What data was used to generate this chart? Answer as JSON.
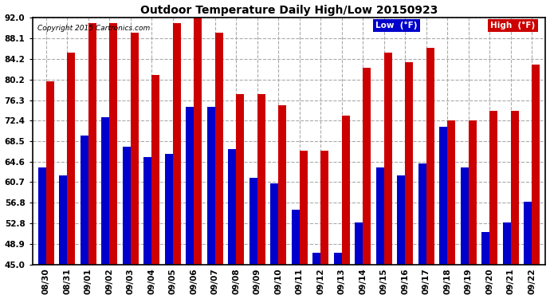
{
  "title": "Outdoor Temperature Daily High/Low 20150923",
  "copyright": "Copyright 2015 Cartronics.com",
  "legend_low": "Low  (°F)",
  "legend_high": "High  (°F)",
  "low_color": "#0000cc",
  "high_color": "#cc0000",
  "background_color": "#ffffff",
  "grid_color": "#aaaaaa",
  "ylim": [
    45.0,
    92.0
  ],
  "yticks": [
    45.0,
    48.9,
    52.8,
    56.8,
    60.7,
    64.6,
    68.5,
    72.4,
    76.3,
    80.2,
    84.2,
    88.1,
    92.0
  ],
  "categories": [
    "08/30",
    "08/31",
    "09/01",
    "09/02",
    "09/03",
    "09/04",
    "09/05",
    "09/06",
    "09/07",
    "09/08",
    "09/09",
    "09/10",
    "09/11",
    "09/12",
    "09/13",
    "09/14",
    "09/15",
    "09/16",
    "09/17",
    "09/18",
    "09/19",
    "09/20",
    "09/21",
    "09/22"
  ],
  "highs": [
    79.9,
    85.3,
    91.0,
    91.0,
    89.2,
    81.1,
    91.0,
    92.5,
    89.2,
    77.5,
    77.5,
    75.3,
    66.6,
    66.6,
    73.4,
    82.4,
    85.3,
    83.5,
    86.3,
    72.4,
    72.4,
    74.3,
    74.3,
    83.0
  ],
  "lows": [
    63.5,
    62.0,
    69.5,
    73.0,
    67.5,
    65.5,
    66.0,
    75.0,
    75.0,
    67.0,
    61.5,
    60.5,
    55.5,
    47.3,
    47.2,
    53.0,
    63.5,
    62.0,
    64.2,
    71.2,
    63.5,
    51.2,
    53.0,
    57.0
  ],
  "ymin": 45.0,
  "bar_width": 0.38
}
